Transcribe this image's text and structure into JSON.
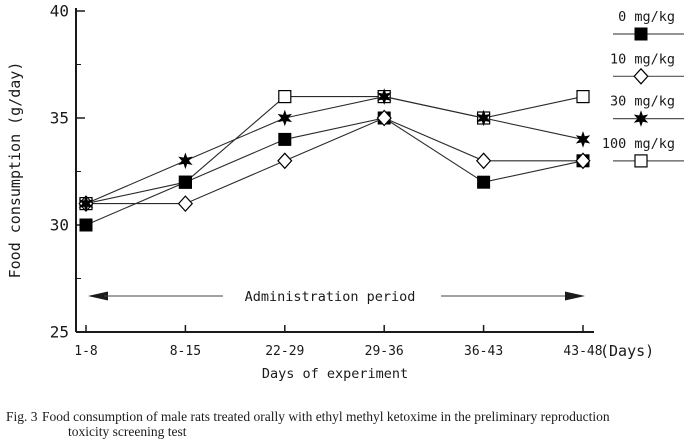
{
  "figure": {
    "caption_label": "Fig. 3",
    "caption_line1": "Food consumption of male rats treated orally with ethyl methyl ketoxime in the preliminary reproduction",
    "caption_line2": "toxicity screening test"
  },
  "chart_data": {
    "type": "line",
    "title": "",
    "xlabel": "Days of experiment",
    "ylabel": "Food consumption (g/day)",
    "x_unit_label": "(Days)",
    "categories": [
      "1-8",
      "8-15",
      "22-29",
      "29-36",
      "36-43",
      "43-48"
    ],
    "ylim": [
      25,
      40
    ],
    "yticks": [
      25,
      30,
      35,
      40
    ],
    "yticks_minor": [
      27.5,
      32.5,
      37.5
    ],
    "grid": "off",
    "legend_position": "top-right",
    "annotation": {
      "text": "Administration period"
    },
    "series": [
      {
        "name": "0 mg/kg",
        "marker": "filled-square",
        "values": [
          30,
          32,
          34,
          35,
          32,
          33
        ]
      },
      {
        "name": "10 mg/kg",
        "marker": "open-diamond",
        "values": [
          31,
          31,
          33,
          35,
          33,
          33
        ]
      },
      {
        "name": "30 mg/kg",
        "marker": "filled-star",
        "values": [
          31,
          33,
          35,
          36,
          35,
          34
        ]
      },
      {
        "name": "100 mg/kg",
        "marker": "open-square",
        "values": [
          31,
          32,
          36,
          36,
          35,
          36
        ]
      }
    ],
    "colors": {
      "line": "#2b2b2b",
      "marker": "#000000",
      "background": "#ffffff"
    }
  }
}
